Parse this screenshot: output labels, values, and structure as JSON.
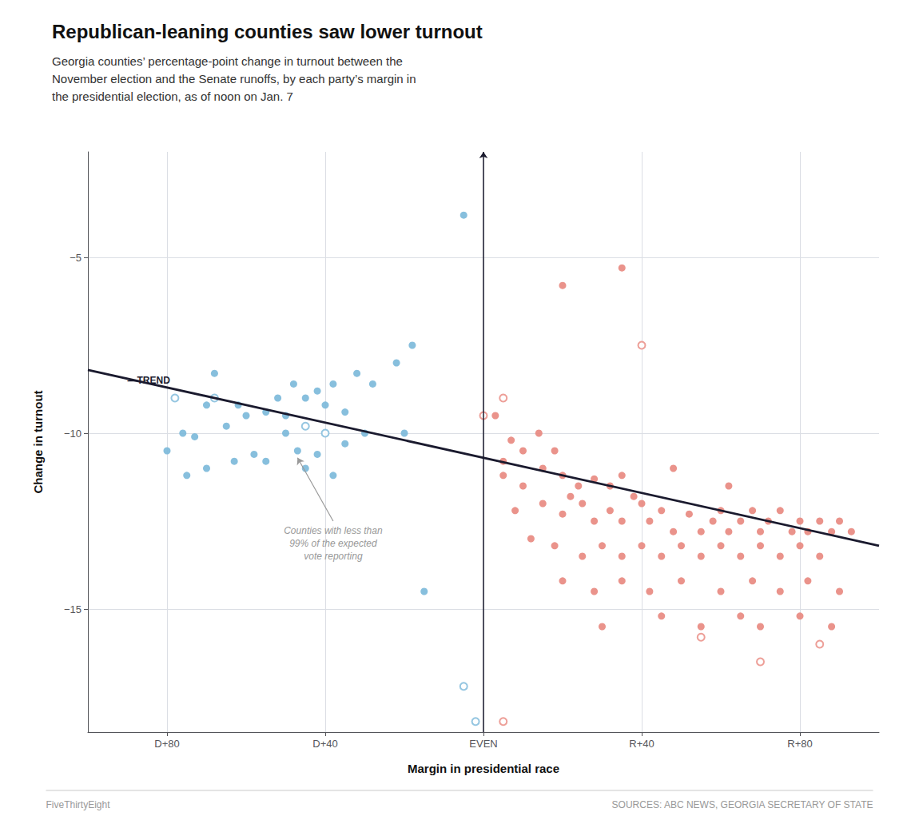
{
  "chart_data": {
    "type": "scatter",
    "title": "Republican-leaning counties saw lower turnout",
    "subtitle": "Georgia counties’ percentage-point change in turnout between the\nNovember election and the Senate runoffs, by each party’s margin in\nthe presidential election, as of noon on Jan. 7",
    "xlabel": "Margin in presidential race",
    "ylabel": "Change in turnout",
    "xlim": [
      -100,
      100
    ],
    "xticks": [
      {
        "value": -80,
        "label": "D+80"
      },
      {
        "value": -40,
        "label": "D+40"
      },
      {
        "value": 0,
        "label": "EVEN"
      },
      {
        "value": 40,
        "label": "R+40"
      },
      {
        "value": 80,
        "label": "R+80"
      }
    ],
    "ylim": [
      -18.5,
      -2.0
    ],
    "yticks": [
      {
        "value": -5,
        "label": "−5"
      },
      {
        "value": -10,
        "label": "−10"
      },
      {
        "value": -15,
        "label": "−15"
      }
    ],
    "grid": true,
    "series": [
      {
        "type": "scatter",
        "marker": "circle",
        "color": "#7ab8d9",
        "values": [
          [
            -5,
            -3.8
          ],
          [
            -18,
            -7.5
          ],
          [
            -22,
            -8.0
          ],
          [
            -28,
            -8.6
          ],
          [
            -32,
            -8.3
          ],
          [
            -38,
            -8.6
          ],
          [
            -42,
            -8.8
          ],
          [
            -48,
            -8.6
          ],
          [
            -35,
            -9.4
          ],
          [
            -40,
            -9.2
          ],
          [
            -45,
            -9.0
          ],
          [
            -50,
            -9.5
          ],
          [
            -52,
            -9.0
          ],
          [
            -55,
            -9.4
          ],
          [
            -60,
            -9.5
          ],
          [
            -62,
            -9.2
          ],
          [
            -65,
            -9.8
          ],
          [
            -68,
            -8.3
          ],
          [
            -70,
            -9.2
          ],
          [
            -73,
            -10.1
          ],
          [
            -76,
            -10.0
          ],
          [
            -80,
            -10.5
          ],
          [
            -30,
            -10.0
          ],
          [
            -35,
            -10.3
          ],
          [
            -42,
            -10.6
          ],
          [
            -47,
            -10.5
          ],
          [
            -50,
            -10.0
          ],
          [
            -55,
            -10.8
          ],
          [
            -58,
            -10.6
          ],
          [
            -63,
            -10.8
          ],
          [
            -38,
            -11.2
          ],
          [
            -45,
            -11.0
          ],
          [
            -70,
            -11.0
          ],
          [
            -75,
            -11.2
          ],
          [
            -20,
            -10.0
          ],
          [
            -15,
            -14.5
          ]
        ]
      },
      {
        "type": "scatter",
        "marker": "circle_open",
        "color": "#7ab8d9",
        "values": [
          [
            -78,
            -9.0
          ],
          [
            -68,
            -9.0
          ],
          [
            -40,
            -10.0
          ],
          [
            -45,
            -9.8
          ],
          [
            -5,
            -17.2
          ],
          [
            -2,
            -18.2
          ]
        ]
      },
      {
        "type": "scatter",
        "marker": "circle",
        "color": "#e8877e",
        "values": [
          [
            3,
            -9.5
          ],
          [
            7,
            -10.2
          ],
          [
            10,
            -10.5
          ],
          [
            14,
            -10.0
          ],
          [
            18,
            -10.5
          ],
          [
            5,
            -11.2
          ],
          [
            10,
            -11.5
          ],
          [
            15,
            -11.0
          ],
          [
            20,
            -11.2
          ],
          [
            24,
            -11.5
          ],
          [
            28,
            -11.3
          ],
          [
            32,
            -11.5
          ],
          [
            35,
            -11.2
          ],
          [
            38,
            -11.8
          ],
          [
            8,
            -12.2
          ],
          [
            15,
            -12.0
          ],
          [
            20,
            -12.3
          ],
          [
            25,
            -12.0
          ],
          [
            28,
            -12.5
          ],
          [
            32,
            -12.2
          ],
          [
            35,
            -12.5
          ],
          [
            40,
            -12.0
          ],
          [
            42,
            -12.5
          ],
          [
            45,
            -12.2
          ],
          [
            48,
            -12.8
          ],
          [
            52,
            -12.3
          ],
          [
            55,
            -12.8
          ],
          [
            58,
            -12.5
          ],
          [
            60,
            -12.2
          ],
          [
            62,
            -12.8
          ],
          [
            65,
            -12.5
          ],
          [
            68,
            -12.2
          ],
          [
            70,
            -12.8
          ],
          [
            72,
            -12.5
          ],
          [
            75,
            -12.2
          ],
          [
            78,
            -12.8
          ],
          [
            80,
            -12.5
          ],
          [
            82,
            -12.8
          ],
          [
            85,
            -12.5
          ],
          [
            88,
            -12.8
          ],
          [
            90,
            -12.5
          ],
          [
            93,
            -12.8
          ],
          [
            12,
            -13.0
          ],
          [
            18,
            -13.2
          ],
          [
            25,
            -13.5
          ],
          [
            30,
            -13.2
          ],
          [
            35,
            -13.5
          ],
          [
            40,
            -13.2
          ],
          [
            45,
            -13.5
          ],
          [
            50,
            -13.2
          ],
          [
            55,
            -13.5
          ],
          [
            60,
            -13.2
          ],
          [
            65,
            -13.5
          ],
          [
            70,
            -13.2
          ],
          [
            75,
            -13.5
          ],
          [
            80,
            -13.2
          ],
          [
            85,
            -13.5
          ],
          [
            20,
            -14.2
          ],
          [
            28,
            -14.5
          ],
          [
            35,
            -14.2
          ],
          [
            42,
            -14.5
          ],
          [
            50,
            -14.2
          ],
          [
            60,
            -14.5
          ],
          [
            68,
            -14.2
          ],
          [
            75,
            -14.5
          ],
          [
            82,
            -14.2
          ],
          [
            90,
            -14.5
          ],
          [
            30,
            -15.5
          ],
          [
            45,
            -15.2
          ],
          [
            55,
            -15.5
          ],
          [
            65,
            -15.2
          ],
          [
            70,
            -15.5
          ],
          [
            80,
            -15.2
          ],
          [
            88,
            -15.5
          ],
          [
            20,
            -5.8
          ],
          [
            35,
            -5.3
          ],
          [
            5,
            -10.8
          ],
          [
            22,
            -11.8
          ],
          [
            48,
            -11.0
          ],
          [
            62,
            -11.5
          ]
        ]
      },
      {
        "type": "scatter",
        "marker": "circle_open",
        "color": "#e8877e",
        "values": [
          [
            5,
            -9.0
          ],
          [
            40,
            -7.5
          ],
          [
            0,
            -9.5
          ],
          [
            55,
            -15.8
          ],
          [
            70,
            -16.5
          ],
          [
            85,
            -16.0
          ],
          [
            5,
            -18.2
          ]
        ]
      },
      {
        "type": "line",
        "color": "#1a1a2e",
        "values": [
          [
            -100,
            -8.2
          ],
          [
            100,
            -13.2
          ]
        ]
      }
    ],
    "vlines": [
      {
        "x": 0,
        "color": "#1a1a2e"
      }
    ],
    "annotations": [
      {
        "text": "—TREND",
        "x": -90,
        "y": -8.5,
        "color": "#1a1a2e"
      },
      {
        "text": "Counties with less than\n99% of the expected\nvote reporting",
        "x": -38,
        "y": -12.5,
        "arrow_to": [
          -47,
          -10.7
        ]
      }
    ],
    "footer": "FiveThirtyEight",
    "source": "SOURCES: ABC NEWS, GEORGIA SECRETARY OF STATE"
  }
}
